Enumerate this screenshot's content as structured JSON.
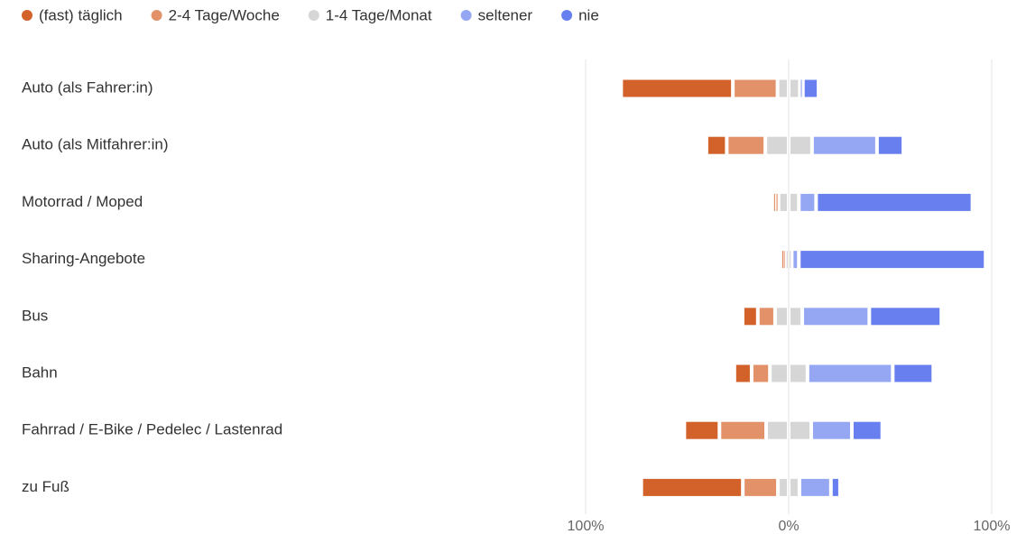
{
  "chart_data": {
    "type": "bar",
    "orientation": "horizontal",
    "stacking": "diverging",
    "categories": [
      "Auto (als Fahrer:in)",
      "Auto (als Mitfahrer:in)",
      "Motorrad / Moped",
      "Sharing-Angebote",
      "Bus",
      "Bahn",
      "Fahrrad / E-Bike / Pedelec / Lastenrad",
      "zu Fuß"
    ],
    "series": [
      {
        "name": "(fast) täglich",
        "color": "#d2622a",
        "values": [
          55,
          10,
          1,
          0.5,
          7.5,
          8.5,
          17.3,
          50
        ]
      },
      {
        "name": "2-4 Tage/Woche",
        "color": "#e39169",
        "values": [
          22,
          19,
          1.5,
          1.3,
          8.5,
          9,
          23,
          17.3
        ]
      },
      {
        "name": "1-4 Tage/Monat",
        "color": "#d6d6d6",
        "values": [
          11,
          23,
          10,
          3,
          13.4,
          18.5,
          22.2,
          10.6
        ]
      },
      {
        "name": "seltener",
        "color": "#95a7f3",
        "values": [
          1.5,
          32,
          8.5,
          3.5,
          33,
          42,
          20,
          15.5
        ]
      },
      {
        "name": "nie",
        "color": "#6880ef",
        "values": [
          7.7,
          13,
          77,
          92,
          35.5,
          20,
          15,
          4.5
        ]
      }
    ],
    "xlim": [
      -100,
      100
    ],
    "xticks": [
      {
        "value": -100,
        "label": "100%"
      },
      {
        "value": 0,
        "label": "0%"
      },
      {
        "value": 100,
        "label": "100%"
      }
    ],
    "grid": true,
    "legend": "top"
  }
}
